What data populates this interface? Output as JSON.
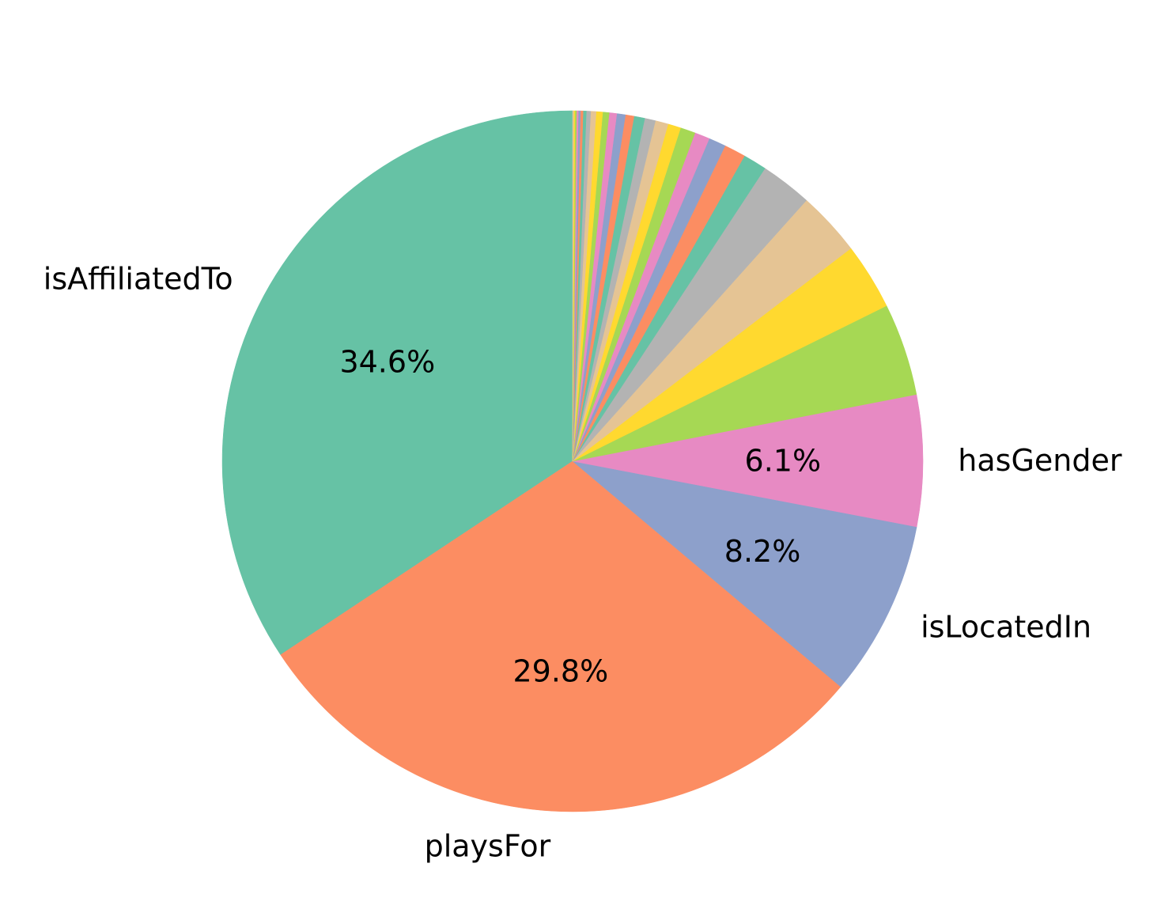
{
  "chart_data": {
    "type": "pie",
    "start": "top",
    "direction": "counterclockwise",
    "slices": [
      {
        "label": "isAffiliatedTo",
        "value": 34.6,
        "pct_label": "34.6%",
        "color": "#66c2a5"
      },
      {
        "label": "playsFor",
        "value": 29.8,
        "pct_label": "29.8%",
        "color": "#fc8d62"
      },
      {
        "label": "isLocatedIn",
        "value": 8.2,
        "pct_label": "8.2%",
        "color": "#8da0cb"
      },
      {
        "label": "hasGender",
        "value": 6.1,
        "pct_label": "6.1%",
        "color": "#e78ac3"
      },
      {
        "label": "",
        "value": 4.3,
        "pct_label": "",
        "color": "#a6d854"
      },
      {
        "label": "",
        "value": 3.1,
        "pct_label": "",
        "color": "#ffd92f"
      },
      {
        "label": "",
        "value": 3.0,
        "pct_label": "",
        "color": "#e5c494"
      },
      {
        "label": "",
        "value": 2.4,
        "pct_label": "",
        "color": "#b3b3b3"
      },
      {
        "label": "",
        "value": 1.1,
        "pct_label": "",
        "color": "#66c2a5"
      },
      {
        "label": "",
        "value": 1.0,
        "pct_label": "",
        "color": "#fc8d62"
      },
      {
        "label": "",
        "value": 0.8,
        "pct_label": "",
        "color": "#8da0cb"
      },
      {
        "label": "",
        "value": 0.7,
        "pct_label": "",
        "color": "#e78ac3"
      },
      {
        "label": "",
        "value": 0.7,
        "pct_label": "",
        "color": "#a6d854"
      },
      {
        "label": "",
        "value": 0.6,
        "pct_label": "",
        "color": "#ffd92f"
      },
      {
        "label": "",
        "value": 0.6,
        "pct_label": "",
        "color": "#e5c494"
      },
      {
        "label": "",
        "value": 0.5,
        "pct_label": "",
        "color": "#b3b3b3"
      },
      {
        "label": "",
        "value": 0.5,
        "pct_label": "",
        "color": "#66c2a5"
      },
      {
        "label": "",
        "value": 0.4,
        "pct_label": "",
        "color": "#fc8d62"
      },
      {
        "label": "",
        "value": 0.4,
        "pct_label": "",
        "color": "#8da0cb"
      },
      {
        "label": "",
        "value": 0.35,
        "pct_label": "",
        "color": "#e78ac3"
      },
      {
        "label": "",
        "value": 0.3,
        "pct_label": "",
        "color": "#a6d854"
      },
      {
        "label": "",
        "value": 0.3,
        "pct_label": "",
        "color": "#ffd92f"
      },
      {
        "label": "",
        "value": 0.25,
        "pct_label": "",
        "color": "#e5c494"
      },
      {
        "label": "",
        "value": 0.2,
        "pct_label": "",
        "color": "#b3b3b3"
      },
      {
        "label": "",
        "value": 0.15,
        "pct_label": "",
        "color": "#66c2a5"
      },
      {
        "label": "",
        "value": 0.12,
        "pct_label": "",
        "color": "#fc8d62"
      },
      {
        "label": "",
        "value": 0.1,
        "pct_label": "",
        "color": "#8da0cb"
      },
      {
        "label": "",
        "value": 0.08,
        "pct_label": "",
        "color": "#e78ac3"
      },
      {
        "label": "",
        "value": 0.07,
        "pct_label": "",
        "color": "#a6d854"
      },
      {
        "label": "",
        "value": 0.06,
        "pct_label": "",
        "color": "#ffd92f"
      },
      {
        "label": "",
        "value": 0.05,
        "pct_label": "",
        "color": "#e5c494"
      }
    ]
  }
}
